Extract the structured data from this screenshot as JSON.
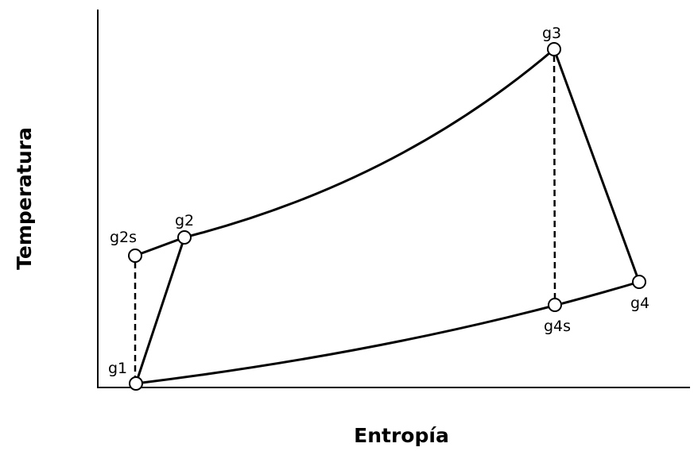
{
  "axes": {
    "x_label": "Entropía",
    "y_label": "Temperatura"
  },
  "nodes": [
    {
      "label": "g1"
    },
    {
      "label": "g2s"
    },
    {
      "label": "g2"
    },
    {
      "label": "g3"
    },
    {
      "label": "g4s"
    },
    {
      "label": "g4"
    }
  ]
}
